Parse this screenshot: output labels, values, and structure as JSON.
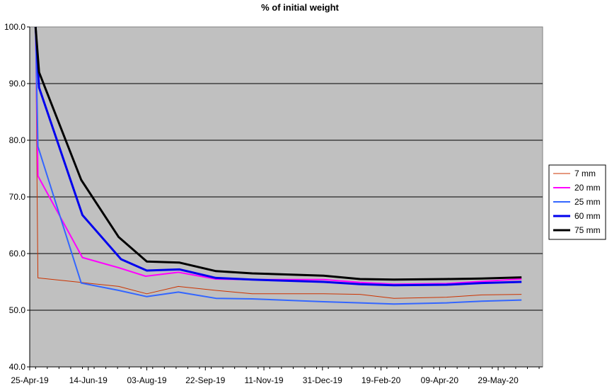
{
  "chart_data": {
    "type": "line",
    "title": "% of initial weight",
    "xlabel": "",
    "ylabel": "",
    "ylim": [
      40.0,
      100.0
    ],
    "yticks": [
      40.0,
      50.0,
      60.0,
      70.0,
      80.0,
      90.0,
      100.0
    ],
    "ytick_labels": [
      "40.0",
      "50.0",
      "60.0",
      "70.0",
      "80.0",
      "90.0",
      "100.0"
    ],
    "xlim": [
      "2019-04-25",
      "2020-07-06"
    ],
    "xtick_labels": [
      "25-Apr-19",
      "14-Jun-19",
      "03-Aug-19",
      "22-Sep-19",
      "11-Nov-19",
      "31-Dec-19",
      "19-Feb-20",
      "09-Apr-20",
      "29-May-20"
    ],
    "xticks": [
      "2019-04-25",
      "2019-06-14",
      "2019-08-03",
      "2019-09-22",
      "2019-11-11",
      "2019-12-31",
      "2020-02-19",
      "2020-04-09",
      "2020-05-29"
    ],
    "grid": "horizontal",
    "legend_position": "right",
    "plot_background": "#c0c0c0",
    "series": [
      {
        "name": "7 mm",
        "color": "#cc3300",
        "width": 1,
        "x": [
          "2019-04-30",
          "2019-05-02",
          "2019-06-08",
          "2019-07-10",
          "2019-08-03",
          "2019-08-30",
          "2019-10-01",
          "2019-11-01",
          "2020-01-01",
          "2020-02-01",
          "2020-03-01",
          "2020-04-15",
          "2020-05-15",
          "2020-06-18"
        ],
        "y": [
          100.0,
          55.7,
          54.9,
          54.2,
          52.9,
          54.2,
          53.5,
          52.9,
          52.9,
          52.8,
          52.1,
          52.3,
          52.7,
          52.8
        ]
      },
      {
        "name": "20 mm",
        "color": "#ff00ff",
        "width": 2,
        "x": [
          "2019-04-30",
          "2019-05-02",
          "2019-06-09",
          "2019-07-10",
          "2019-08-02",
          "2019-08-30",
          "2019-10-01",
          "2019-11-01",
          "2020-01-01",
          "2020-02-01",
          "2020-03-01",
          "2020-04-15",
          "2020-05-15",
          "2020-06-18"
        ],
        "y": [
          100.0,
          73.7,
          59.3,
          57.5,
          56.0,
          56.7,
          55.5,
          55.4,
          55.4,
          54.9,
          54.6,
          54.7,
          55.1,
          55.5
        ]
      },
      {
        "name": "25 mm",
        "color": "#3366ff",
        "width": 2,
        "x": [
          "2019-04-30",
          "2019-05-02",
          "2019-06-08",
          "2019-07-10",
          "2019-08-03",
          "2019-08-30",
          "2019-10-01",
          "2019-11-01",
          "2020-01-01",
          "2020-02-01",
          "2020-03-01",
          "2020-04-15",
          "2020-05-15",
          "2020-06-18"
        ],
        "y": [
          100.0,
          78.9,
          54.8,
          53.5,
          52.4,
          53.2,
          52.1,
          52.0,
          51.5,
          51.3,
          51.1,
          51.3,
          51.6,
          51.8
        ]
      },
      {
        "name": "60 mm",
        "color": "#0000ee",
        "width": 3,
        "x": [
          "2019-04-30",
          "2019-05-03",
          "2019-06-09",
          "2019-07-12",
          "2019-08-03",
          "2019-08-31",
          "2019-10-01",
          "2019-11-01",
          "2020-01-01",
          "2020-02-01",
          "2020-03-01",
          "2020-04-15",
          "2020-05-15",
          "2020-06-18"
        ],
        "y": [
          100.0,
          89.3,
          66.8,
          59.0,
          57.0,
          57.2,
          55.7,
          55.4,
          55.0,
          54.6,
          54.4,
          54.5,
          54.8,
          55.0
        ]
      },
      {
        "name": "75 mm",
        "color": "#000000",
        "width": 3,
        "x": [
          "2019-04-30",
          "2019-05-03",
          "2019-06-08",
          "2019-07-10",
          "2019-08-03",
          "2019-08-31",
          "2019-10-01",
          "2019-11-01",
          "2020-01-01",
          "2020-02-01",
          "2020-03-01",
          "2020-04-15",
          "2020-05-15",
          "2020-06-18"
        ],
        "y": [
          100.0,
          92.0,
          73.0,
          62.9,
          58.6,
          58.4,
          56.9,
          56.5,
          56.1,
          55.5,
          55.4,
          55.5,
          55.6,
          55.8
        ]
      }
    ]
  }
}
